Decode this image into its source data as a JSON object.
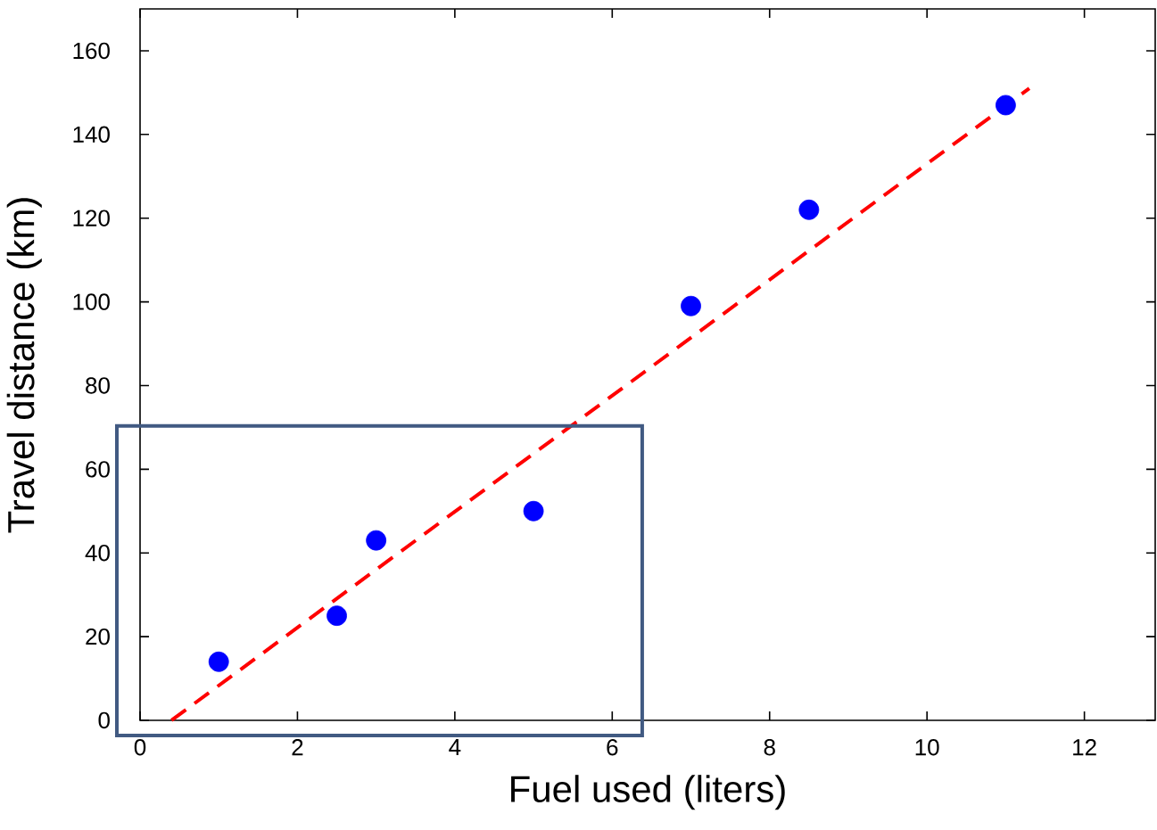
{
  "chart_data": {
    "type": "scatter",
    "xlabel": "Fuel used (liters)",
    "ylabel": "Travel distance (km)",
    "xlim": [
      0,
      12.9
    ],
    "ylim": [
      0,
      170
    ],
    "xticks": [
      0,
      2,
      4,
      6,
      8,
      10,
      12
    ],
    "yticks": [
      0,
      20,
      40,
      60,
      80,
      100,
      120,
      140,
      160
    ],
    "grid": false,
    "marker": "circle",
    "series": [
      {
        "type": "scatter",
        "color": "#0000ff",
        "x": [
          1,
          2.5,
          3,
          5,
          7,
          8.5,
          11
        ],
        "values": [
          14,
          25,
          43,
          50,
          99,
          122,
          147
        ]
      },
      {
        "type": "line",
        "color": "#ff0000",
        "line_style": "dashed",
        "marker": "none",
        "x": [
          0.4,
          11.3
        ],
        "values": [
          0,
          151
        ]
      }
    ]
  }
}
